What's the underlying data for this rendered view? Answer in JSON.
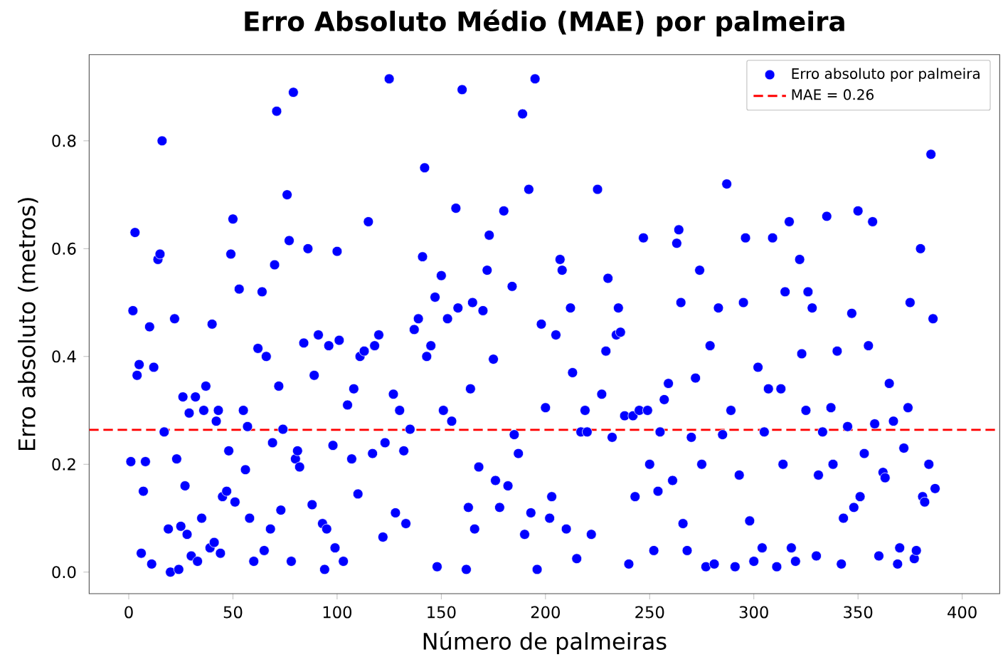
{
  "chart_data": {
    "type": "scatter",
    "title": "Erro Absoluto Médio (MAE) por palmeira",
    "xlabel": "Número de palmeiras",
    "ylabel": "Erro absoluto (metros)",
    "xlim": [
      -19,
      418
    ],
    "ylim": [
      -0.04,
      0.96
    ],
    "xticks": [
      0,
      50,
      100,
      150,
      200,
      250,
      300,
      350,
      400
    ],
    "yticks": [
      {
        "value": 0,
        "label": "0.0"
      },
      {
        "value": 0.2,
        "label": "0.2"
      },
      {
        "value": 0.4,
        "label": "0.4"
      },
      {
        "value": 0.6,
        "label": "0.6"
      },
      {
        "value": 0.8,
        "label": "0.8"
      }
    ],
    "legend": "top right",
    "marker": "circle",
    "ref_lines": [
      {
        "axis": "y",
        "value": 0.264,
        "label": "MAE = 0.26",
        "color": "#ff0000",
        "line_style": "dashed"
      }
    ],
    "series": [
      {
        "name": "Erro absoluto por palmeira",
        "color": "#0000ff",
        "x": [
          1,
          2,
          3,
          4,
          5,
          6,
          7,
          8,
          10,
          11,
          12,
          14,
          15,
          16,
          17,
          19,
          20,
          22,
          23,
          24,
          25,
          26,
          27,
          28,
          29,
          30,
          32,
          33,
          35,
          36,
          37,
          39,
          40,
          41,
          42,
          43,
          44,
          45,
          47,
          48,
          49,
          50,
          51,
          53,
          55,
          56,
          57,
          58,
          60,
          62,
          64,
          65,
          66,
          68,
          69,
          70,
          71,
          72,
          73,
          74,
          76,
          77,
          78,
          79,
          80,
          81,
          82,
          84,
          86,
          88,
          89,
          91,
          93,
          94,
          95,
          96,
          98,
          99,
          100,
          101,
          103,
          105,
          107,
          108,
          110,
          111,
          113,
          115,
          117,
          118,
          120,
          122,
          123,
          125,
          127,
          128,
          130,
          132,
          133,
          135,
          137,
          139,
          141,
          142,
          143,
          145,
          147,
          148,
          150,
          151,
          153,
          155,
          157,
          158,
          160,
          162,
          163,
          164,
          165,
          166,
          168,
          170,
          172,
          173,
          175,
          176,
          178,
          180,
          182,
          184,
          185,
          187,
          189,
          190,
          192,
          193,
          195,
          196,
          198,
          200,
          202,
          203,
          205,
          207,
          208,
          210,
          212,
          213,
          215,
          217,
          219,
          220,
          222,
          225,
          227,
          229,
          230,
          232,
          234,
          235,
          236,
          238,
          240,
          242,
          243,
          245,
          247,
          249,
          250,
          252,
          254,
          255,
          257,
          259,
          261,
          263,
          264,
          265,
          266,
          268,
          270,
          272,
          274,
          275,
          277,
          279,
          281,
          283,
          285,
          287,
          289,
          291,
          293,
          295,
          296,
          298,
          300,
          302,
          304,
          305,
          307,
          309,
          311,
          313,
          314,
          315,
          317,
          318,
          320,
          322,
          323,
          325,
          326,
          328,
          330,
          331,
          333,
          335,
          337,
          338,
          340,
          342,
          343,
          345,
          347,
          348,
          350,
          351,
          353,
          355,
          357,
          358,
          360,
          362,
          363,
          365,
          367,
          369,
          370,
          372,
          374,
          375,
          377,
          378,
          380,
          381,
          382,
          384,
          385,
          386,
          387
        ],
        "values": [
          0.205,
          0.485,
          0.63,
          0.365,
          0.385,
          0.035,
          0.15,
          0.205,
          0.455,
          0.015,
          0.38,
          0.58,
          0.59,
          0.8,
          0.26,
          0.08,
          0.0,
          0.47,
          0.21,
          0.005,
          0.085,
          0.325,
          0.16,
          0.07,
          0.295,
          0.03,
          0.325,
          0.02,
          0.1,
          0.3,
          0.345,
          0.045,
          0.46,
          0.055,
          0.28,
          0.3,
          0.035,
          0.14,
          0.15,
          0.225,
          0.59,
          0.655,
          0.13,
          0.525,
          0.3,
          0.19,
          0.27,
          0.1,
          0.02,
          0.415,
          0.52,
          0.04,
          0.4,
          0.08,
          0.24,
          0.57,
          0.855,
          0.345,
          0.115,
          0.265,
          0.7,
          0.615,
          0.02,
          0.89,
          0.21,
          0.225,
          0.195,
          0.425,
          0.6,
          0.125,
          0.365,
          0.44,
          0.09,
          0.005,
          0.08,
          0.42,
          0.235,
          0.045,
          0.595,
          0.43,
          0.02,
          0.31,
          0.21,
          0.34,
          0.145,
          0.4,
          0.41,
          0.65,
          0.22,
          0.42,
          0.44,
          0.065,
          0.24,
          0.915,
          0.33,
          0.11,
          0.3,
          0.225,
          0.09,
          0.265,
          0.45,
          0.47,
          0.585,
          0.75,
          0.4,
          0.42,
          0.51,
          0.01,
          0.55,
          0.3,
          0.47,
          0.28,
          0.675,
          0.49,
          0.895,
          0.005,
          0.12,
          0.34,
          0.5,
          0.08,
          0.195,
          0.485,
          0.56,
          0.625,
          0.395,
          0.17,
          0.12,
          0.67,
          0.16,
          0.53,
          0.255,
          0.22,
          0.85,
          0.07,
          0.71,
          0.11,
          0.915,
          0.005,
          0.46,
          0.305,
          0.1,
          0.14,
          0.44,
          0.58,
          0.56,
          0.08,
          0.49,
          0.37,
          0.025,
          0.26,
          0.3,
          0.26,
          0.07,
          0.71,
          0.33,
          0.41,
          0.545,
          0.25,
          0.44,
          0.49,
          0.445,
          0.29,
          0.015,
          0.29,
          0.14,
          0.3,
          0.62,
          0.3,
          0.2,
          0.04,
          0.15,
          0.26,
          0.32,
          0.35,
          0.17,
          0.61,
          0.635,
          0.5,
          0.09,
          0.04,
          0.25,
          0.36,
          0.56,
          0.2,
          0.01,
          0.42,
          0.015,
          0.49,
          0.255,
          0.72,
          0.3,
          0.01,
          0.18,
          0.5,
          0.62,
          0.095,
          0.02,
          0.38,
          0.045,
          0.26,
          0.34,
          0.62,
          0.01,
          0.34,
          0.2,
          0.52,
          0.65,
          0.045,
          0.02,
          0.58,
          0.405,
          0.3,
          0.52,
          0.49,
          0.03,
          0.18,
          0.26,
          0.66,
          0.305,
          0.2,
          0.41,
          0.015,
          0.1,
          0.27,
          0.48,
          0.12,
          0.67,
          0.14,
          0.22,
          0.42,
          0.65,
          0.275,
          0.03,
          0.185,
          0.175,
          0.35,
          0.28,
          0.015,
          0.045,
          0.23,
          0.305,
          0.5,
          0.025,
          0.04,
          0.6,
          0.14,
          0.13,
          0.2,
          0.775,
          0.47,
          0.155
        ]
      }
    ]
  }
}
